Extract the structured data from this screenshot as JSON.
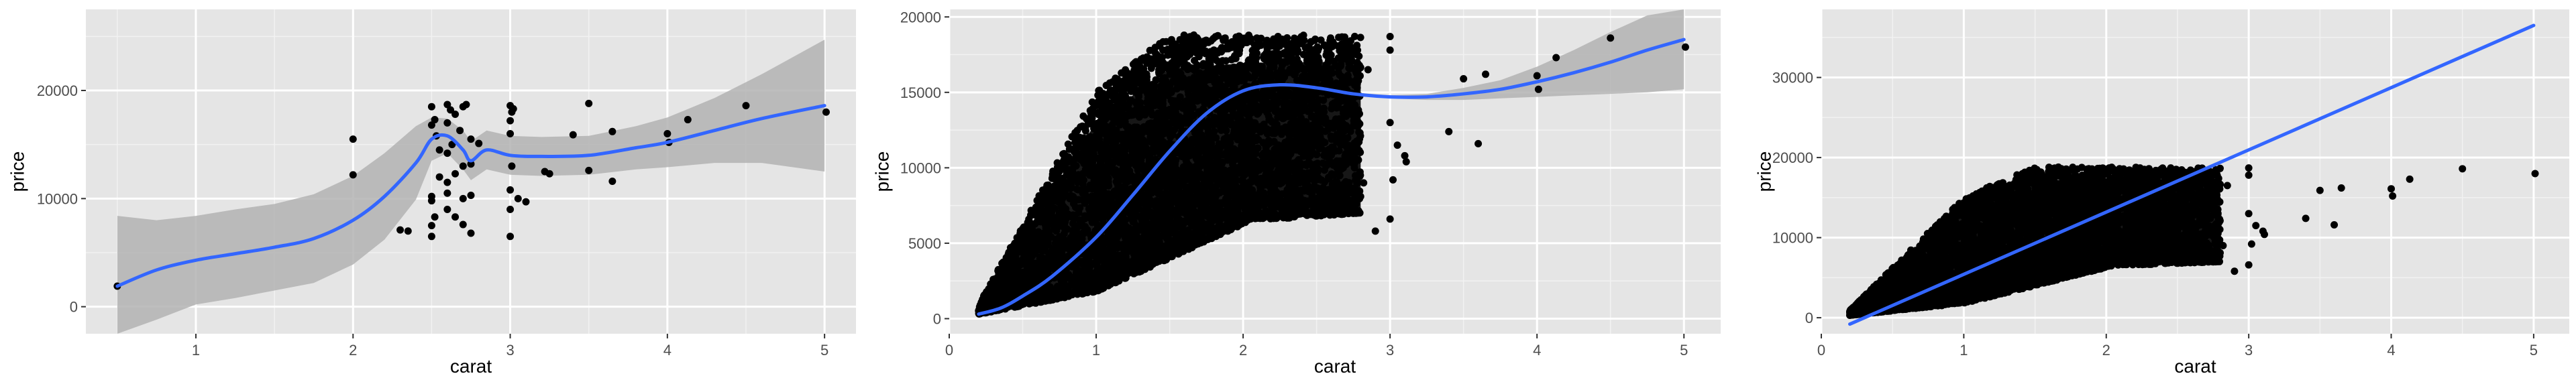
{
  "colors": {
    "panel_bg": "#e5e5e5",
    "grid_major": "#ffffff",
    "point": "#000000",
    "smooth_line": "#3366ff",
    "ribbon": "#b3b3b3",
    "tick_text": "#4d4d4d"
  },
  "chart_data": [
    {
      "type": "scatter",
      "xlabel": "carat",
      "ylabel": "price",
      "xlim": [
        0.3,
        5.2
      ],
      "ylim": [
        -2500,
        27500
      ],
      "xticks": [
        1,
        2,
        3,
        4,
        5
      ],
      "yticks": [
        0,
        10000,
        20000
      ],
      "xtick_labels": [
        "1",
        "2",
        "3",
        "4",
        "5"
      ],
      "ytick_labels": [
        "0",
        "10000",
        "20000"
      ],
      "grid": true,
      "points": [
        [
          0.5,
          1900
        ],
        [
          2.0,
          15500
        ],
        [
          2.0,
          12200
        ],
        [
          2.3,
          7100
        ],
        [
          2.35,
          7000
        ],
        [
          2.5,
          18500
        ],
        [
          2.52,
          17300
        ],
        [
          2.5,
          16800
        ],
        [
          2.53,
          15800
        ],
        [
          2.55,
          14500
        ],
        [
          2.55,
          12000
        ],
        [
          2.5,
          10200
        ],
        [
          2.5,
          9800
        ],
        [
          2.52,
          8300
        ],
        [
          2.5,
          7500
        ],
        [
          2.5,
          6500
        ],
        [
          2.6,
          18700
        ],
        [
          2.62,
          18200
        ],
        [
          2.65,
          17800
        ],
        [
          2.6,
          17000
        ],
        [
          2.7,
          18500
        ],
        [
          2.72,
          18700
        ],
        [
          2.68,
          16300
        ],
        [
          2.63,
          15000
        ],
        [
          2.6,
          14200
        ],
        [
          2.7,
          13000
        ],
        [
          2.65,
          12300
        ],
        [
          2.6,
          11500
        ],
        [
          2.6,
          10500
        ],
        [
          2.7,
          10000
        ],
        [
          2.6,
          9000
        ],
        [
          2.65,
          8300
        ],
        [
          2.7,
          7600
        ],
        [
          2.75,
          15500
        ],
        [
          2.8,
          15100
        ],
        [
          2.75,
          13200
        ],
        [
          2.75,
          10300
        ],
        [
          2.75,
          6800
        ],
        [
          3.0,
          18600
        ],
        [
          3.02,
          18300
        ],
        [
          3.01,
          18000
        ],
        [
          3.0,
          17200
        ],
        [
          3.0,
          16000
        ],
        [
          3.01,
          13000
        ],
        [
          3.0,
          10800
        ],
        [
          3.05,
          10000
        ],
        [
          3.1,
          9700
        ],
        [
          3.0,
          9000
        ],
        [
          3.0,
          6500
        ],
        [
          3.22,
          12500
        ],
        [
          3.25,
          12300
        ],
        [
          3.4,
          15900
        ],
        [
          3.5,
          18800
        ],
        [
          3.5,
          12600
        ],
        [
          3.65,
          16200
        ],
        [
          3.65,
          11600
        ],
        [
          4.0,
          16000
        ],
        [
          4.01,
          15200
        ],
        [
          4.13,
          17300
        ],
        [
          4.5,
          18600
        ],
        [
          5.01,
          18000
        ]
      ],
      "smooth": {
        "x": [
          0.5,
          0.75,
          1.0,
          1.25,
          1.5,
          1.75,
          2.0,
          2.2,
          2.4,
          2.5,
          2.6,
          2.7,
          2.75,
          2.85,
          3.0,
          3.2,
          3.5,
          3.8,
          4.0,
          4.3,
          4.6,
          5.0
        ],
        "y": [
          1900,
          3400,
          4300,
          4900,
          5500,
          6300,
          8000,
          10200,
          13300,
          15500,
          15800,
          14500,
          13500,
          14500,
          14000,
          13900,
          14000,
          14700,
          15200,
          16300,
          17400,
          18600
        ],
        "lower": [
          -4600,
          -1200,
          200,
          800,
          1500,
          2200,
          3900,
          6200,
          9900,
          13500,
          14200,
          12700,
          11700,
          12700,
          12200,
          12100,
          12200,
          12700,
          12900,
          13300,
          13300,
          12500
        ],
        "upper": [
          8400,
          8000,
          8400,
          9000,
          9500,
          10400,
          12100,
          14200,
          16700,
          17500,
          17400,
          16300,
          15300,
          16300,
          15800,
          15700,
          15800,
          16700,
          17500,
          19300,
          21500,
          24700
        ]
      }
    },
    {
      "type": "scatter",
      "xlabel": "carat",
      "ylabel": "price",
      "xlim": [
        0,
        5.25
      ],
      "ylim": [
        -1000,
        20500
      ],
      "xticks": [
        0,
        1,
        2,
        3,
        4,
        5
      ],
      "yticks": [
        0,
        5000,
        10000,
        15000,
        20000
      ],
      "xtick_labels": [
        "0",
        "1",
        "2",
        "3",
        "4",
        "5"
      ],
      "ytick_labels": [
        "0",
        "5000",
        "10000",
        "15000",
        "20000"
      ],
      "grid": true,
      "dense_regions": [
        {
          "x_from": 0.2,
          "x_to": 1.0,
          "bottom_from": 300,
          "bottom_to": 1800,
          "top_from": 900,
          "top_to": 15000
        },
        {
          "x_from": 1.0,
          "x_to": 1.5,
          "bottom_from": 1800,
          "bottom_to": 4000,
          "top_from": 15000,
          "top_to": 18800
        },
        {
          "x_from": 1.5,
          "x_to": 2.05,
          "bottom_from": 4000,
          "bottom_to": 6500,
          "top_from": 18800,
          "top_to": 18800
        },
        {
          "x_from": 2.05,
          "x_to": 2.8,
          "bottom_from": 6500,
          "bottom_to": 7000,
          "top_from": 18800,
          "top_to": 18800
        }
      ],
      "outlier_points": [
        [
          2.9,
          5800
        ],
        [
          3.0,
          18700
        ],
        [
          3.0,
          17800
        ],
        [
          3.0,
          13000
        ],
        [
          3.02,
          9200
        ],
        [
          3.0,
          6600
        ],
        [
          3.05,
          11500
        ],
        [
          3.1,
          10800
        ],
        [
          3.11,
          10400
        ],
        [
          3.4,
          12400
        ],
        [
          3.5,
          15900
        ],
        [
          3.6,
          11600
        ],
        [
          3.65,
          16200
        ],
        [
          4.0,
          16100
        ],
        [
          4.01,
          15200
        ],
        [
          4.13,
          17300
        ],
        [
          4.5,
          18600
        ],
        [
          5.01,
          18000
        ],
        [
          2.85,
          16500
        ],
        [
          2.82,
          9000
        ]
      ],
      "smooth": {
        "x": [
          0.2,
          0.35,
          0.5,
          0.7,
          1.0,
          1.25,
          1.5,
          1.75,
          2.0,
          2.25,
          2.5,
          2.75,
          3.0,
          3.25,
          3.5,
          3.75,
          4.0,
          4.25,
          4.5,
          4.75,
          5.0
        ],
        "y": [
          300,
          700,
          1500,
          2800,
          5400,
          8200,
          11100,
          13600,
          15100,
          15500,
          15300,
          14900,
          14700,
          14700,
          14900,
          15200,
          15700,
          16300,
          17000,
          17800,
          18500
        ],
        "lower": [
          300,
          700,
          1500,
          2800,
          5400,
          8200,
          11100,
          13600,
          15000,
          15400,
          15200,
          14800,
          14600,
          14500,
          14500,
          14600,
          14700,
          14800,
          14900,
          15000,
          15200
        ],
        "upper": [
          300,
          700,
          1500,
          2800,
          5400,
          8200,
          11100,
          13600,
          15200,
          15600,
          15400,
          15000,
          14800,
          14900,
          15300,
          15800,
          16700,
          17800,
          19000,
          20100,
          20500
        ]
      }
    },
    {
      "type": "scatter",
      "xlabel": "carat",
      "ylabel": "price",
      "xlim": [
        0,
        5.25
      ],
      "ylim": [
        -2000,
        38500
      ],
      "xticks": [
        0,
        1,
        2,
        3,
        4,
        5
      ],
      "yticks": [
        0,
        10000,
        20000,
        30000
      ],
      "xtick_labels": [
        "0",
        "1",
        "2",
        "3",
        "4",
        "5"
      ],
      "ytick_labels": [
        "0",
        "10000",
        "20000",
        "30000"
      ],
      "grid": true,
      "dense_regions": [
        {
          "x_from": 0.2,
          "x_to": 1.0,
          "bottom_from": 300,
          "bottom_to": 1800,
          "top_from": 900,
          "top_to": 15000
        },
        {
          "x_from": 1.0,
          "x_to": 1.5,
          "bottom_from": 1800,
          "bottom_to": 4000,
          "top_from": 15000,
          "top_to": 18800
        },
        {
          "x_from": 1.5,
          "x_to": 2.05,
          "bottom_from": 4000,
          "bottom_to": 6500,
          "top_from": 18800,
          "top_to": 18800
        },
        {
          "x_from": 2.05,
          "x_to": 2.8,
          "bottom_from": 6500,
          "bottom_to": 7000,
          "top_from": 18800,
          "top_to": 18800
        }
      ],
      "outlier_points": [
        [
          2.9,
          5800
        ],
        [
          3.0,
          18700
        ],
        [
          3.0,
          17800
        ],
        [
          3.0,
          13000
        ],
        [
          3.02,
          9200
        ],
        [
          3.0,
          6600
        ],
        [
          3.05,
          11500
        ],
        [
          3.1,
          10800
        ],
        [
          3.11,
          10400
        ],
        [
          3.4,
          12400
        ],
        [
          3.5,
          15900
        ],
        [
          3.6,
          11600
        ],
        [
          3.65,
          16200
        ],
        [
          4.0,
          16100
        ],
        [
          4.01,
          15200
        ],
        [
          4.13,
          17300
        ],
        [
          4.5,
          18600
        ],
        [
          5.01,
          18000
        ],
        [
          2.85,
          16500
        ],
        [
          2.82,
          9000
        ]
      ],
      "line": {
        "x": [
          0.2,
          5.0
        ],
        "y": [
          -800,
          36500
        ]
      }
    }
  ]
}
